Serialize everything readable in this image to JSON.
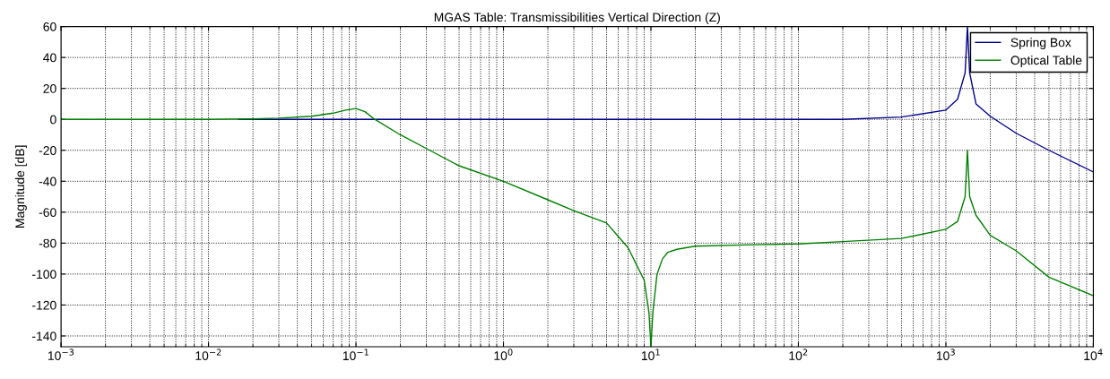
{
  "chart_data": {
    "type": "line",
    "title": "MGAS Table: Transmissibilities Vertical Direction (Z)",
    "ylabel": "Magnitude [dB]",
    "log": "x",
    "grid": true,
    "legend": "top right",
    "line_style": "solid",
    "marker": "none",
    "xlim": [
      0.001,
      10000
    ],
    "ylim": [
      -147,
      60
    ],
    "xticks": [
      {
        "value": 0.001,
        "label": "10$^{−3}$"
      },
      {
        "value": 0.01,
        "label": "10$^{−2}$"
      },
      {
        "value": 0.1,
        "label": "10$^{−1}$"
      },
      {
        "value": 1,
        "label": "10$^{0}$"
      },
      {
        "value": 10,
        "label": "10$^{1}$"
      },
      {
        "value": 100,
        "label": "10$^{2}$"
      },
      {
        "value": 1000,
        "label": "10$^{3}$"
      },
      {
        "value": 10000,
        "label": "10$^{4}$"
      }
    ],
    "yticks": [
      -140,
      -120,
      -100,
      -80,
      -60,
      -40,
      -20,
      0,
      20,
      40,
      60
    ],
    "series": [
      {
        "name": "Spring Box",
        "color": "#00008b",
        "x": [
          0.016,
          0.1,
          1,
          10,
          100,
          200,
          500,
          1000,
          1200,
          1350,
          1400,
          1450,
          1600,
          2000,
          3000,
          5000,
          10000
        ],
        "values": [
          0,
          0,
          0,
          0,
          0,
          0,
          1.5,
          6,
          13,
          30,
          60,
          30,
          10,
          2,
          -9,
          -20,
          -34
        ]
      },
      {
        "name": "Optical Table",
        "color": "#008000",
        "x": [
          0.001,
          0.01,
          0.02,
          0.03,
          0.05,
          0.07,
          0.085,
          0.1,
          0.115,
          0.134,
          0.2,
          0.316,
          0.5,
          1,
          2,
          3,
          5,
          7,
          9,
          9.7,
          10,
          10.3,
          11,
          12,
          13,
          15,
          20,
          50,
          100,
          200,
          500,
          1000,
          1200,
          1350,
          1400,
          1450,
          1600,
          2000,
          3000,
          5000,
          10000
        ],
        "values": [
          0,
          0,
          0.3,
          0.8,
          2,
          4,
          6,
          7,
          5,
          0,
          -10,
          -20,
          -30,
          -40,
          -52,
          -59,
          -67,
          -83,
          -104,
          -125,
          -147,
          -125,
          -100,
          -90,
          -86,
          -84,
          -82,
          -81,
          -80.5,
          -79,
          -77,
          -71,
          -66,
          -50,
          -20,
          -50,
          -62,
          -75,
          -85,
          -102,
          -114
        ]
      }
    ]
  }
}
